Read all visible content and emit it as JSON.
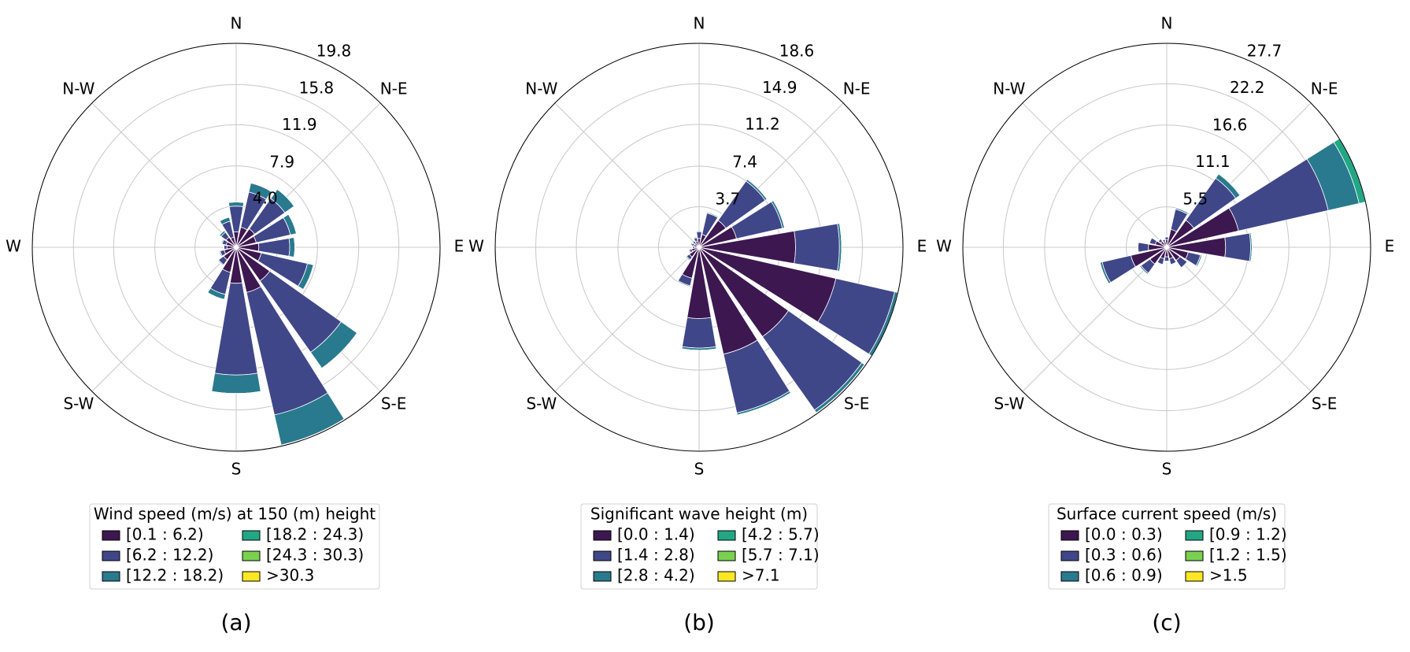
{
  "chart_data": [
    {
      "type": "windrose",
      "legend_title": "Wind speed (m/s) at 150 (m) height",
      "caption": "(a)",
      "directions": [
        "N",
        "N-E",
        "E",
        "S-E",
        "S",
        "S-W",
        "W",
        "N-W"
      ],
      "ylim": [
        0,
        19.8
      ],
      "yticks": [
        {
          "value": 4.0,
          "label": "4.0"
        },
        7.9,
        11.9,
        15.8,
        19.8
      ],
      "grid": true,
      "series": [
        {
          "name": "[0.1 : 6.2)",
          "color": "#3d1750",
          "values": [
            1.5,
            2.0,
            2.2,
            2.0,
            2.2,
            2.5,
            4.0,
            4.5,
            3.5,
            2.5,
            1.5,
            1.2,
            0.9,
            1.0,
            1.2,
            1.0
          ]
        },
        {
          "name": "[6.2 : 12.2)",
          "color": "#3f4788",
          "values": [
            2.5,
            3.5,
            3.6,
            3.4,
            3.0,
            4.6,
            8.5,
            12.2,
            8.9,
            2.2,
            0.6,
            0.4,
            0.3,
            0.4,
            0.6,
            1.6
          ]
        },
        {
          "name": "[12.2 : 18.2)",
          "color": "#297a8e",
          "values": [
            0.4,
            0.9,
            1.1,
            0.6,
            0.5,
            0.6,
            1.9,
            3.0,
            1.8,
            0.5,
            0.1,
            0.1,
            0,
            0.1,
            0.2,
            0.4
          ]
        },
        {
          "name": "[18.2 : 24.3)",
          "color": "#22a785",
          "values": [
            0,
            0,
            0,
            0,
            0,
            0,
            0,
            0,
            0,
            0,
            0,
            0,
            0,
            0,
            0,
            0
          ]
        },
        {
          "name": "[24.3 : 30.3)",
          "color": "#7ad151",
          "values": [
            0,
            0,
            0,
            0,
            0,
            0,
            0,
            0,
            0,
            0,
            0,
            0,
            0,
            0,
            0,
            0
          ]
        },
        {
          "name": ">30.3",
          "color": "#fde725",
          "values": [
            0,
            0,
            0,
            0,
            0,
            0,
            0,
            0,
            0,
            0,
            0,
            0,
            0,
            0,
            0,
            0
          ]
        }
      ]
    },
    {
      "type": "windrose",
      "legend_title": "Significant wave height (m)",
      "caption": "(b)",
      "directions": [
        "N",
        "N-E",
        "E",
        "S-E",
        "S",
        "S-W",
        "W",
        "N-W"
      ],
      "ylim": [
        0,
        18.6
      ],
      "yticks": [
        3.7,
        7.4,
        11.2,
        14.9,
        18.6
      ],
      "grid": true,
      "series": [
        {
          "name": "[0.0 : 1.4)",
          "color": "#3d1750",
          "values": [
            0.8,
            1.2,
            3.0,
            3.5,
            8.8,
            12.8,
            10.0,
            10.0,
            6.5,
            2.9,
            1.1,
            0.7,
            0.4,
            0.5,
            0.5,
            0.6
          ]
        },
        {
          "name": "[1.4 : 2.8)",
          "color": "#3f4788",
          "values": [
            0.6,
            2.0,
            4.4,
            4.3,
            4.0,
            5.5,
            8.2,
            5.5,
            2.7,
            0.7,
            0.3,
            0.2,
            0.2,
            0.2,
            0.2,
            0.3
          ]
        },
        {
          "name": "[2.8 : 4.2)",
          "color": "#297a8e",
          "values": [
            0.1,
            0.1,
            0.2,
            0.2,
            0.2,
            0.3,
            0.3,
            0.2,
            0.2,
            0.1,
            0.1,
            0.1,
            0,
            0.1,
            0.1,
            0.1
          ]
        },
        {
          "name": "[4.2 : 5.7)",
          "color": "#22a785",
          "values": [
            0,
            0,
            0,
            0,
            0,
            0,
            0,
            0,
            0,
            0,
            0,
            0,
            0,
            0,
            0,
            0
          ]
        },
        {
          "name": "[5.7 : 7.1)",
          "color": "#7ad151",
          "values": [
            0,
            0,
            0,
            0,
            0,
            0,
            0,
            0,
            0,
            0,
            0,
            0,
            0,
            0,
            0,
            0
          ]
        },
        {
          "name": ">7.1",
          "color": "#fde725",
          "values": [
            0,
            0,
            0,
            0,
            0,
            0,
            0,
            0,
            0,
            0,
            0,
            0,
            0,
            0,
            0,
            0
          ]
        }
      ]
    },
    {
      "type": "windrose",
      "legend_title": "Surface current speed (m/s)",
      "caption": "(c)",
      "directions": [
        "N",
        "N-E",
        "E",
        "S-E",
        "S",
        "S-W",
        "W",
        "N-W"
      ],
      "ylim": [
        0,
        27.7
      ],
      "yticks": [
        5.5,
        11.1,
        16.6,
        22.2,
        27.7
      ],
      "grid": true,
      "series": [
        {
          "name": "[0.0 : 0.3)",
          "color": "#3d1750",
          "values": [
            1.0,
            2.5,
            4.5,
            10.0,
            8.0,
            3.0,
            2.2,
            1.6,
            1.3,
            1.6,
            2.8,
            5.0,
            2.5,
            1.6,
            1.0,
            0.8
          ]
        },
        {
          "name": "[0.3 : 0.6)",
          "color": "#3f4788",
          "values": [
            0.4,
            2.8,
            7.0,
            12.5,
            3.4,
            1.7,
            1.2,
            0.8,
            0.6,
            0.8,
            1.5,
            4.0,
            1.4,
            0.8,
            0.4,
            0.3
          ]
        },
        {
          "name": "[0.6 : 0.9)",
          "color": "#297a8e",
          "values": [
            0.1,
            0.2,
            0.7,
            4.3,
            0.2,
            0.2,
            0.1,
            0.1,
            0.1,
            0.1,
            0.2,
            0.3,
            0.1,
            0.1,
            0.1,
            0.1
          ]
        },
        {
          "name": "[0.9 : 1.2)",
          "color": "#22a785",
          "values": [
            0,
            0,
            0.1,
            0.9,
            0,
            0,
            0,
            0,
            0,
            0,
            0,
            0,
            0,
            0,
            0,
            0
          ]
        },
        {
          "name": "[1.2 : 1.5)",
          "color": "#7ad151",
          "values": [
            0,
            0,
            0,
            0,
            0,
            0,
            0,
            0,
            0,
            0,
            0,
            0,
            0,
            0,
            0,
            0
          ]
        },
        {
          "name": ">1.5",
          "color": "#fde725",
          "values": [
            0,
            0,
            0,
            0,
            0,
            0,
            0,
            0,
            0,
            0,
            0,
            0,
            0,
            0,
            0,
            0
          ]
        }
      ]
    }
  ]
}
